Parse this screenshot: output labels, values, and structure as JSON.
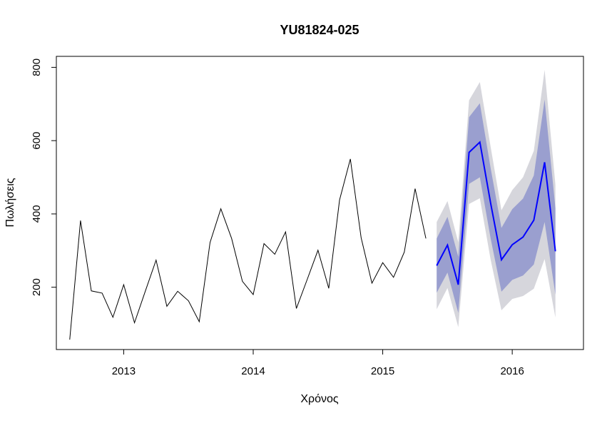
{
  "chart_data": {
    "type": "line",
    "title": "YU81824-025",
    "xlabel": "Χρόνος",
    "ylabel": "Πωλήσεις",
    "xlim": [
      2012.48,
      2016.55
    ],
    "ylim": [
      30,
      830
    ],
    "x_ticks": [
      2013,
      2014,
      2015,
      2016
    ],
    "x_tick_labels": [
      "2013",
      "2014",
      "2015",
      "2016"
    ],
    "y_ticks": [
      200,
      400,
      600,
      800
    ],
    "y_tick_labels": [
      "200",
      "400",
      "600",
      "800"
    ],
    "grid": false,
    "legend": "none",
    "colors": {
      "history": "#000000",
      "forecast": "#0000ff",
      "band_80": "#9a9fcf",
      "band_95": "#d6d6dc"
    },
    "history": {
      "x": [
        "2012-08",
        "2012-09",
        "2012-10",
        "2012-11",
        "2012-12",
        "2013-01",
        "2013-02",
        "2013-03",
        "2013-04",
        "2013-05",
        "2013-06",
        "2013-07",
        "2013-08",
        "2013-09",
        "2013-10",
        "2013-11",
        "2013-12",
        "2014-01",
        "2014-02",
        "2014-03",
        "2014-04",
        "2014-05",
        "2014-06",
        "2014-07",
        "2014-08",
        "2014-09",
        "2014-10",
        "2014-11",
        "2014-12",
        "2015-01",
        "2015-02",
        "2015-03",
        "2015-04",
        "2015-05"
      ],
      "values": [
        57,
        382,
        190,
        184,
        118,
        207,
        103,
        189,
        274,
        148,
        189,
        163,
        106,
        322,
        414,
        333,
        216,
        180,
        319,
        290,
        351,
        142,
        221,
        301,
        197,
        438,
        550,
        335,
        211,
        267,
        227,
        296,
        469,
        333
      ]
    },
    "forecast": {
      "x": [
        "2015-06",
        "2015-07",
        "2015-08",
        "2015-09",
        "2015-10",
        "2015-11",
        "2015-12",
        "2016-01",
        "2016-02",
        "2016-03",
        "2016-04",
        "2016-05"
      ],
      "mean": [
        259,
        315,
        207,
        568,
        596,
        429,
        275,
        316,
        337,
        383,
        541,
        298
      ],
      "lower_80": [
        185,
        240,
        130,
        482,
        500,
        333,
        188,
        220,
        232,
        262,
        378,
        180
      ],
      "upper_80": [
        333,
        392,
        283,
        664,
        702,
        525,
        362,
        413,
        442,
        505,
        712,
        416
      ],
      "lower_95": [
        140,
        198,
        91,
        427,
        443,
        275,
        137,
        168,
        176,
        196,
        277,
        117
      ],
      "upper_95": [
        378,
        435,
        323,
        710,
        760,
        583,
        410,
        465,
        500,
        572,
        793,
        480
      ]
    }
  }
}
